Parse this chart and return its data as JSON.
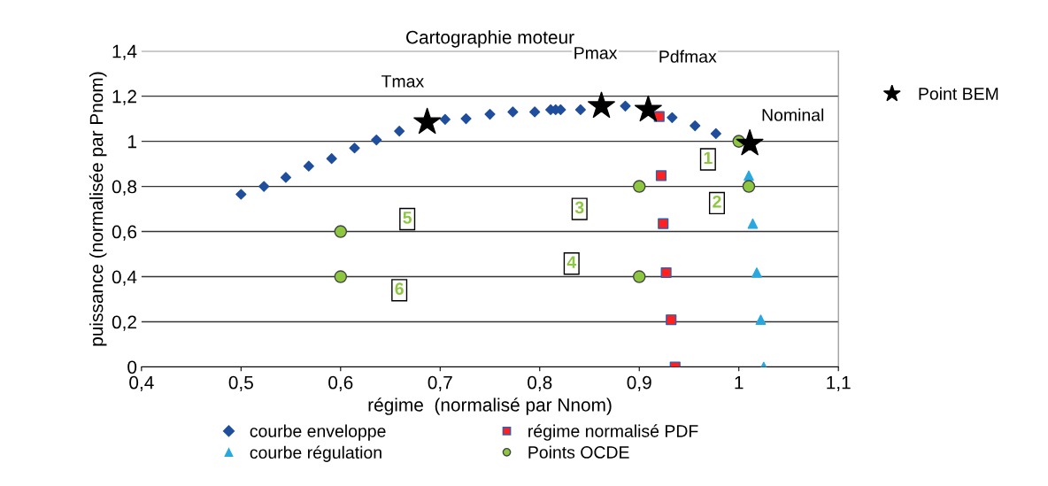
{
  "chart_data": {
    "type": "scatter",
    "title": "Cartographie moteur",
    "xlabel": "régime  (normalisé par Nnom)",
    "ylabel": "puissance (normalisée par Pnom)",
    "xlim": [
      0.4,
      1.1
    ],
    "xticks": [
      {
        "value": 0.4,
        "label": "0,4"
      },
      {
        "value": 0.5,
        "label": "0,5"
      },
      {
        "value": 0.6,
        "label": "0,6"
      },
      {
        "value": 0.7,
        "label": "0,7"
      },
      {
        "value": 0.8,
        "label": "0,8"
      },
      {
        "value": 0.9,
        "label": "0,9"
      },
      {
        "value": 1,
        "label": "1"
      },
      {
        "value": 1.1,
        "label": "1,1"
      }
    ],
    "ylim": [
      0,
      1.4
    ],
    "yticks": [
      0,
      {
        "value": 0.2,
        "label": "0,2"
      },
      {
        "value": 0.4,
        "label": "0,4"
      },
      {
        "value": 0.6,
        "label": "0,6"
      },
      {
        "value": 0.8,
        "label": "0,8"
      },
      1,
      {
        "value": 1.2,
        "label": "1,2"
      },
      {
        "value": 1.4,
        "label": "1,4"
      }
    ],
    "grid": "y",
    "legend": "bottom",
    "series": [
      {
        "name": "courbe enveloppe",
        "color": "#1f4e9c",
        "marker": "diamond",
        "x": [
          0.5,
          0.523,
          0.545,
          0.568,
          0.591,
          0.614,
          0.636,
          0.659,
          0.705,
          0.726,
          0.75,
          0.773,
          0.795,
          0.811,
          0.816,
          0.821,
          0.841,
          0.886,
          0.933,
          0.956,
          0.977
        ],
        "values": [
          0.765,
          0.8,
          0.84,
          0.89,
          0.923,
          0.97,
          1.006,
          1.045,
          1.097,
          1.1,
          1.12,
          1.13,
          1.13,
          1.14,
          1.14,
          1.14,
          1.14,
          1.156,
          1.105,
          1.069,
          1.034
        ]
      },
      {
        "name": "régime normalisé PDF",
        "color": "#ff2020",
        "marker": "square",
        "x": [
          0.92,
          0.922,
          0.924,
          0.927,
          0.932,
          0.936
        ],
        "values": [
          1.11,
          0.848,
          0.635,
          0.418,
          0.209,
          0
        ]
      },
      {
        "name": "courbe régulation",
        "color": "#29a8e0",
        "marker": "triangle",
        "x": [
          1.01,
          1.014,
          1.018,
          1.022,
          1.025
        ],
        "values": [
          0.848,
          0.635,
          0.418,
          0.209,
          0
        ]
      },
      {
        "name": "Points OCDE",
        "color": "#8dc63f",
        "marker": "circle",
        "x": [
          1,
          1.01,
          0.9,
          0.9,
          0.6,
          0.6
        ],
        "values": [
          1,
          0.8,
          0.8,
          0.4,
          0.6,
          0.4
        ]
      },
      {
        "name": "Point BEM",
        "color": "#000000",
        "marker": "star",
        "x": [
          0.687,
          0.862,
          0.909,
          1.011
        ],
        "values": [
          1.085,
          1.156,
          1.14,
          0.99
        ]
      }
    ],
    "annotations": [
      {
        "text": "Tmax",
        "x": 0.687,
        "y": 1.085
      },
      {
        "text": "Pmax",
        "x": 0.862,
        "y": 1.156
      },
      {
        "text": "Pdfmax",
        "x": 0.909,
        "y": 1.14
      },
      {
        "text": "Nominal",
        "x": 1.011,
        "y": 0.99
      },
      {
        "text": "1",
        "x": 0.969,
        "y": 0.92
      },
      {
        "text": "2",
        "x": 0.978,
        "y": 0.726
      },
      {
        "text": "3",
        "x": 0.84,
        "y": 0.7
      },
      {
        "text": "4",
        "x": 0.832,
        "y": 0.458
      },
      {
        "text": "5",
        "x": 0.667,
        "y": 0.655
      },
      {
        "text": "6",
        "x": 0.659,
        "y": 0.34
      }
    ]
  }
}
